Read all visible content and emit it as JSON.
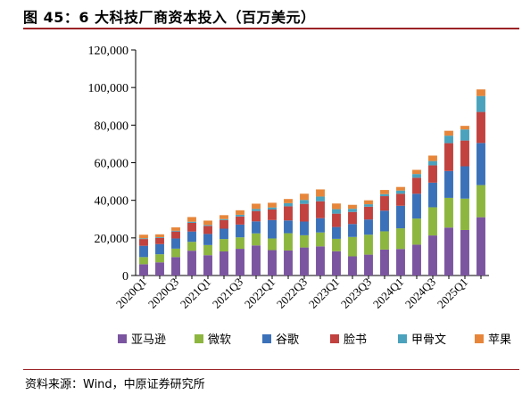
{
  "figure": {
    "title": "图 45：6 大科技厂商资本投入（百万美元）",
    "source": "资料来源：Wind，中原证券研究所"
  },
  "chart_data": {
    "type": "bar",
    "stacked": true,
    "ylim": [
      0,
      120000
    ],
    "yticks": [
      0,
      20000,
      40000,
      60000,
      80000,
      100000,
      120000
    ],
    "ytick_labels": [
      "0",
      "20,000",
      "40,000",
      "60,000",
      "80,000",
      "100,000",
      "120,000"
    ],
    "grid": false,
    "legend_position": "bottom",
    "categories": [
      "2020Q1",
      "2020Q2",
      "2020Q3",
      "2020Q4",
      "2021Q1",
      "2021Q2",
      "2021Q3",
      "2021Q4",
      "2022Q1",
      "2022Q2",
      "2022Q3",
      "2022Q4",
      "2023Q1",
      "2023Q2",
      "2023Q3",
      "2023Q4",
      "2024Q1",
      "2024Q2",
      "2024Q3",
      "2024Q4",
      "2025Q1",
      "2025Q2"
    ],
    "xtick_labels": [
      "2020Q1",
      "2020Q3",
      "2021Q1",
      "2021Q3",
      "2022Q1",
      "2022Q3",
      "2023Q1",
      "2023Q3",
      "2024Q1",
      "2024Q3",
      "2025Q1"
    ],
    "series": [
      {
        "name": "亚马逊",
        "color": "#7b55a0",
        "values": [
          6000,
          7000,
          9800,
          13200,
          10800,
          12800,
          14200,
          16000,
          13500,
          13300,
          14900,
          15500,
          12900,
          10200,
          11100,
          13800,
          14100,
          16400,
          21300,
          25500,
          24200,
          31000
        ]
      },
      {
        "name": "微软",
        "color": "#8db640",
        "values": [
          3800,
          4300,
          4500,
          4700,
          5400,
          6600,
          6100,
          6400,
          6200,
          9200,
          6500,
          7400,
          6600,
          10300,
          10600,
          9700,
          11000,
          13900,
          15000,
          15800,
          16700,
          17100
        ]
      },
      {
        "name": "谷歌",
        "color": "#3b71b8",
        "values": [
          6000,
          5400,
          5400,
          5500,
          5900,
          5500,
          6800,
          6400,
          9800,
          6800,
          7300,
          7600,
          6300,
          6900,
          8100,
          11000,
          12000,
          13200,
          13100,
          14300,
          17200,
          22400
        ]
      },
      {
        "name": "脸书",
        "color": "#c1423f",
        "values": [
          3600,
          3300,
          3700,
          4600,
          4300,
          4600,
          4300,
          5500,
          5600,
          7500,
          9400,
          9000,
          7100,
          6400,
          6800,
          7700,
          6400,
          8500,
          9200,
          14800,
          13700,
          16500
        ]
      },
      {
        "name": "甲骨文",
        "color": "#4aa2bd",
        "values": [
          400,
          400,
          400,
          600,
          500,
          500,
          900,
          1100,
          1100,
          1700,
          2100,
          2500,
          2400,
          1700,
          1300,
          1100,
          1700,
          2000,
          2300,
          4000,
          5900,
          8500
        ]
      },
      {
        "name": "苹果",
        "color": "#e7863a",
        "values": [
          1900,
          1500,
          1800,
          2500,
          2300,
          2100,
          2400,
          2800,
          2500,
          2200,
          3300,
          3800,
          3000,
          2100,
          2100,
          2200,
          1900,
          2200,
          2900,
          2600,
          1900,
          3500
        ]
      }
    ]
  }
}
